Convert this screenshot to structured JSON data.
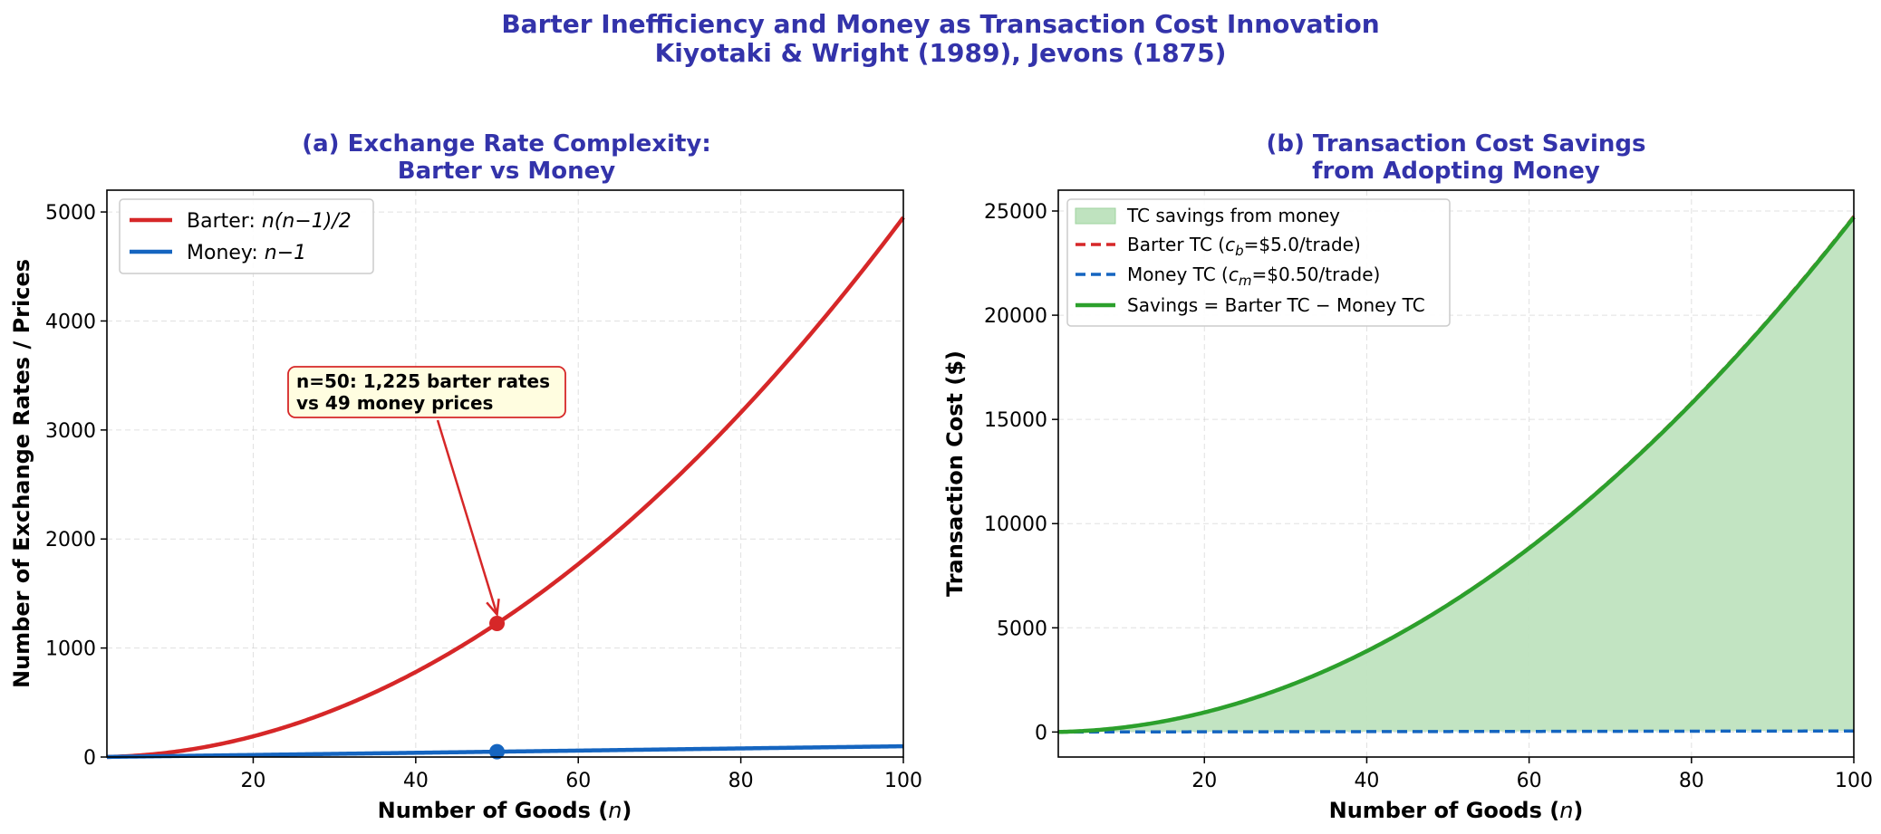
{
  "figure": {
    "title_line1": "Barter Inefficiency and Money as Transaction Cost Innovation",
    "title_line2": "Kiyotaki & Wright (1989), Jevons (1875)"
  },
  "colors": {
    "title": "#3333aa",
    "barter": "#d62728",
    "money": "#1565c0",
    "savings": "#2ca02c",
    "savings_fill": "#bfe3bf",
    "annotation_bg": "#fffde0",
    "annotation_border": "#d62728"
  },
  "chart_data": [
    {
      "type": "line",
      "panel": "a",
      "title_line1": "(a) Exchange Rate Complexity:",
      "title_line2": "Barter vs Money",
      "xlabel": "Number of Goods (n)",
      "ylabel": "Number of Exchange Rates / Prices",
      "xlim": [
        2,
        100
      ],
      "ylim": [
        0,
        5200
      ],
      "xticks": [
        20,
        40,
        60,
        80,
        100
      ],
      "yticks": [
        0,
        1000,
        2000,
        3000,
        4000,
        5000
      ],
      "grid": true,
      "legend_position": "top-left",
      "series": [
        {
          "name": "Barter: n(n−1)/2",
          "legend_prefix": "Barter: ",
          "legend_math": "n(n−1)/2",
          "formula": "n*(n-1)/2",
          "color": "#d62728"
        },
        {
          "name": "Money: n−1",
          "legend_prefix": "Money: ",
          "legend_math": "n−1",
          "formula": "n-1",
          "color": "#1565c0"
        }
      ],
      "markers": [
        {
          "x": 50,
          "y": 1225,
          "series": "Barter"
        },
        {
          "x": 50,
          "y": 49,
          "series": "Money"
        }
      ],
      "annotation": {
        "line1": "n=50: 1,225 barter rates",
        "line2": "vs 49 money prices",
        "x": 50,
        "y": 1225
      }
    },
    {
      "type": "area",
      "panel": "b",
      "title_line1": "(b) Transaction Cost Savings",
      "title_line2": "from Adopting Money",
      "xlabel": "Number of Goods (n)",
      "ylabel": "Transaction Cost ($)",
      "xlim": [
        2,
        100
      ],
      "ylim": [
        -1200,
        26000
      ],
      "xticks": [
        20,
        40,
        60,
        80,
        100
      ],
      "yticks": [
        0,
        5000,
        10000,
        15000,
        20000,
        25000
      ],
      "grid": true,
      "legend_position": "top-left",
      "cost_per_trade": {
        "barter": 5.0,
        "money": 0.5
      },
      "series": [
        {
          "name": "TC savings from money",
          "kind": "fill",
          "color": "#bfe3bf"
        },
        {
          "name": "Barter TC",
          "formula": "5.0*n*(n-1)/2",
          "color": "#d62728",
          "dash": true,
          "legend_prefix": "Barter TC (",
          "legend_sym": "c",
          "legend_sub": "b",
          "legend_suffix": "=$5.0/trade)"
        },
        {
          "name": "Money TC",
          "formula": "0.5*(n-1)",
          "color": "#1565c0",
          "dash": true,
          "legend_prefix": "Money TC (",
          "legend_sym": "c",
          "legend_sub": "m",
          "legend_suffix": "=$0.50/trade)"
        },
        {
          "name": "Savings = Barter TC − Money TC",
          "formula": "barter_tc - money_tc",
          "color": "#2ca02c"
        }
      ]
    }
  ]
}
